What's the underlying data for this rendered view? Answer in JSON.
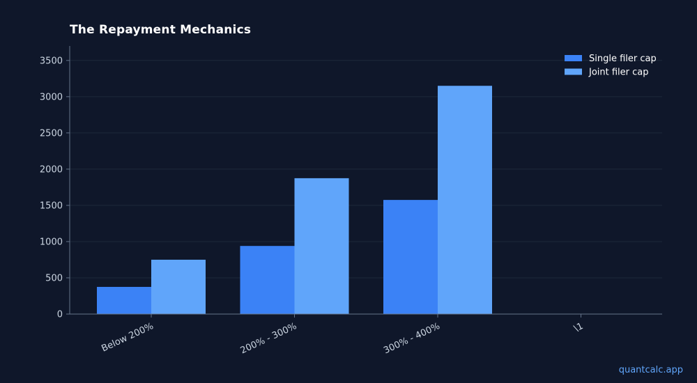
{
  "title": "The Repayment Mechanics",
  "watermark": "quantcalc.app",
  "colors": {
    "background": "#0f172a",
    "grid": "#1e293b",
    "axis": "#64748b",
    "tick_text": "#cbd5e1"
  },
  "chart_data": {
    "type": "bar",
    "title": "The Repayment Mechanics",
    "xlabel": "",
    "ylabel": "",
    "categories": [
      "Below 200%",
      "200% - 300%",
      "300% - 400%",
      "\\1"
    ],
    "series": [
      {
        "name": "Single filer cap",
        "color": "#3b82f6",
        "values": [
          375,
          940,
          1575,
          0
        ]
      },
      {
        "name": "Joint filer cap",
        "color": "#60a5fa",
        "values": [
          750,
          1875,
          3150,
          0
        ]
      }
    ],
    "ylim": [
      0,
      3700
    ],
    "yticks": [
      0,
      500,
      1000,
      1500,
      2000,
      2500,
      3000,
      3500
    ],
    "grid": true,
    "legend": "top-right"
  }
}
